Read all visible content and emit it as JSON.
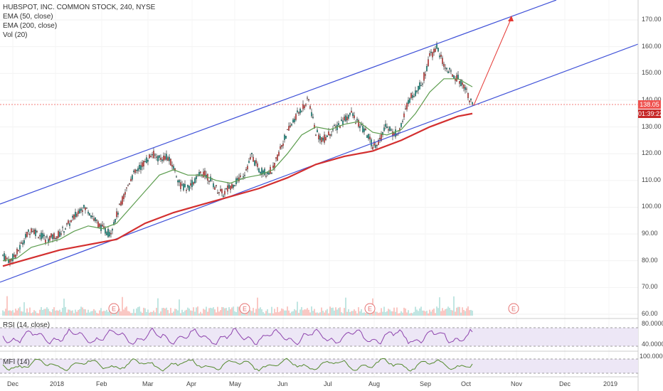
{
  "header": {
    "symbol_line": "HUBSPOT, INC. COMMON STOCK, 240, NYSE",
    "ema50": "EMA (50, close)",
    "ema200": "EMA (200, close)",
    "vol": "Vol (20)"
  },
  "rsi": {
    "label": "RSI (14, close)",
    "ticks": [
      "80.0000",
      "40.0000"
    ]
  },
  "mfi": {
    "label": "MFI (14)",
    "ticks": [
      "100.0000"
    ]
  },
  "price_tag": "138.05",
  "time_tag": "01:39:22",
  "colors": {
    "up": "#26a69a",
    "down": "#ef5350",
    "channel": "#3f51d8",
    "ema50": "#5d9d4f",
    "ema200": "#d32f2f",
    "arrow": "#e53935",
    "panel": "#ede7f6"
  },
  "chart_data": {
    "type": "line",
    "title": "HUBSPOT, INC. COMMON STOCK, 240, NYSE",
    "y_ticks": [
      "170.00",
      "160.00",
      "150.00",
      "140.00",
      "130.00",
      "120.00",
      "110.00",
      "100.00",
      "90.00",
      "80.00",
      "70.00",
      "60.00"
    ],
    "x_ticks": [
      "Dec",
      "2018",
      "Feb",
      "Mar",
      "Apr",
      "May",
      "Jun",
      "Jul",
      "Aug",
      "Sep",
      "Oct",
      "Nov",
      "Dec",
      "2019"
    ],
    "ylim": [
      60,
      173
    ],
    "last_price": 138.05,
    "earnings_markers": [
      "E",
      "E",
      "E",
      "E"
    ],
    "series": [
      {
        "name": "Price",
        "points": [
          [
            0,
            82
          ],
          [
            10,
            80
          ],
          [
            20,
            83
          ],
          [
            30,
            88
          ],
          [
            40,
            92
          ],
          [
            50,
            90
          ],
          [
            60,
            88
          ],
          [
            70,
            89
          ],
          [
            80,
            90
          ],
          [
            90,
            93
          ],
          [
            100,
            96
          ],
          [
            110,
            100
          ],
          [
            120,
            99
          ],
          [
            130,
            95
          ],
          [
            140,
            92
          ],
          [
            150,
            90
          ],
          [
            160,
            97
          ],
          [
            170,
            104
          ],
          [
            180,
            111
          ],
          [
            190,
            114
          ],
          [
            200,
            117
          ],
          [
            210,
            120
          ],
          [
            220,
            118
          ],
          [
            230,
            119
          ],
          [
            240,
            115
          ],
          [
            250,
            108
          ],
          [
            260,
            107
          ],
          [
            270,
            110
          ],
          [
            280,
            113
          ],
          [
            290,
            111
          ],
          [
            300,
            107
          ],
          [
            310,
            105
          ],
          [
            320,
            108
          ],
          [
            330,
            110
          ],
          [
            340,
            113
          ],
          [
            350,
            119
          ],
          [
            360,
            114
          ],
          [
            370,
            113
          ],
          [
            380,
            114
          ],
          [
            390,
            122
          ],
          [
            400,
            128
          ],
          [
            410,
            133
          ],
          [
            420,
            137
          ],
          [
            430,
            140
          ],
          [
            440,
            128
          ],
          [
            450,
            125
          ],
          [
            460,
            128
          ],
          [
            470,
            130
          ],
          [
            480,
            133
          ],
          [
            490,
            135
          ],
          [
            500,
            131
          ],
          [
            510,
            128
          ],
          [
            520,
            123
          ],
          [
            530,
            125
          ],
          [
            540,
            131
          ],
          [
            550,
            127
          ],
          [
            560,
            130
          ],
          [
            570,
            140
          ],
          [
            580,
            143
          ],
          [
            590,
            147
          ],
          [
            600,
            156
          ],
          [
            610,
            160
          ],
          [
            620,
            153
          ],
          [
            630,
            150
          ],
          [
            640,
            148
          ],
          [
            650,
            145
          ],
          [
            660,
            138
          ]
        ]
      },
      {
        "name": "EMA (50, close)",
        "points": [
          [
            0,
            80
          ],
          [
            20,
            81
          ],
          [
            40,
            85
          ],
          [
            60,
            86.5
          ],
          [
            80,
            88
          ],
          [
            100,
            91
          ],
          [
            120,
            93
          ],
          [
            140,
            92
          ],
          [
            160,
            94
          ],
          [
            180,
            100
          ],
          [
            200,
            106
          ],
          [
            220,
            112
          ],
          [
            240,
            114
          ],
          [
            260,
            112
          ],
          [
            280,
            112
          ],
          [
            300,
            110
          ],
          [
            320,
            109
          ],
          [
            340,
            111
          ],
          [
            360,
            112
          ],
          [
            380,
            114
          ],
          [
            400,
            120
          ],
          [
            420,
            127
          ],
          [
            440,
            130
          ],
          [
            460,
            129
          ],
          [
            480,
            131
          ],
          [
            500,
            132
          ],
          [
            520,
            128
          ],
          [
            540,
            127
          ],
          [
            560,
            129
          ],
          [
            580,
            135
          ],
          [
            600,
            143
          ],
          [
            620,
            148
          ],
          [
            640,
            148
          ],
          [
            660,
            145
          ]
        ]
      },
      {
        "name": "EMA (200, close)",
        "points": [
          [
            0,
            78
          ],
          [
            40,
            81
          ],
          [
            80,
            84
          ],
          [
            120,
            86
          ],
          [
            160,
            88
          ],
          [
            200,
            94
          ],
          [
            240,
            98
          ],
          [
            280,
            101
          ],
          [
            320,
            104
          ],
          [
            360,
            107
          ],
          [
            400,
            111
          ],
          [
            440,
            116
          ],
          [
            480,
            119
          ],
          [
            520,
            121
          ],
          [
            560,
            125
          ],
          [
            600,
            130
          ],
          [
            640,
            134
          ],
          [
            660,
            135
          ]
        ]
      }
    ]
  }
}
